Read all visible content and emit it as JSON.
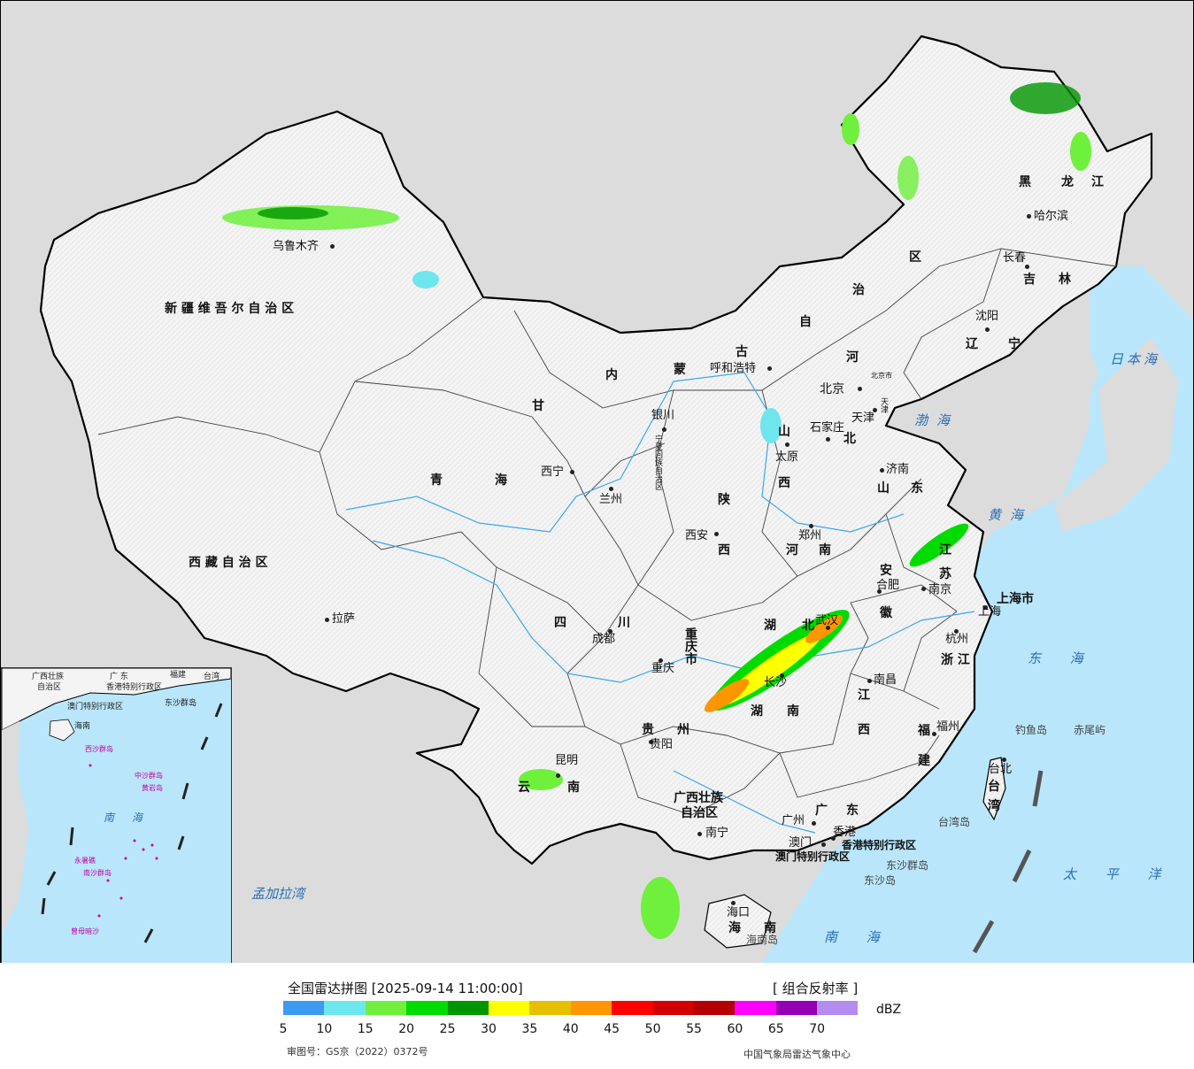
{
  "legend": {
    "title": "全国雷达拼图 [2025-09-14 11:00:00]",
    "product": "[ 组合反射率 ]",
    "unit": "dBZ",
    "approval": "审图号：GS京（2022）0372号",
    "producer": "中国气象局雷达气象中心",
    "colors": [
      "#3c9bf0",
      "#6ee6ee",
      "#6ef03c",
      "#00dc00",
      "#009600",
      "#ffff00",
      "#e6c000",
      "#ff9600",
      "#ff0000",
      "#d20000",
      "#b40000",
      "#ff00ff",
      "#9600b4",
      "#b48cf0"
    ],
    "ticks": [
      "5",
      "10",
      "15",
      "20",
      "25",
      "30",
      "35",
      "40",
      "45",
      "50",
      "55",
      "60",
      "65",
      "70"
    ]
  },
  "map": {
    "provinces": {
      "xinjiang": "新 疆 维 吾 尔 自 治 区",
      "xizang": "西 藏 自 治 区",
      "qinghai_a": "青",
      "qinghai_b": "海",
      "gansu": "甘",
      "neimenggu_a": "内",
      "neimenggu_b": "蒙",
      "neimenggu_c": "古",
      "neimenggu_d": "自",
      "neimenggu_e": "治",
      "neimenggu_f": "区",
      "heilongjiang_a": "黑",
      "heilongjiang_b": "龙",
      "heilongjiang_c": "江",
      "jilin_a": "吉",
      "jilin_b": "林",
      "liaoning_a": "辽",
      "liaoning_b": "宁",
      "hebei_a": "河",
      "hebei_b": "北",
      "shanxi_a": "山",
      "shanxi_b": "西",
      "shandong_a": "山",
      "shandong_b": "东",
      "shaanxi_a": "陕",
      "shaanxi_b": "西",
      "henan_a": "河",
      "henan_b": "南",
      "jiangsu_a": "江",
      "jiangsu_b": "苏",
      "anhui_a": "安",
      "anhui_b": "徽",
      "shanghai": "上海市",
      "zhejiang": "浙 江",
      "hubei_a": "湖",
      "hubei_b": "北",
      "hunan_a": "湖",
      "hunan_b": "南",
      "jiangxi_a": "江",
      "jiangxi_b": "西",
      "fujian_a": "福",
      "fujian_b": "建",
      "sichuan_a": "四",
      "sichuan_b": "川",
      "chongqing": "重庆市",
      "guizhou_a": "贵",
      "guizhou_b": "州",
      "yunnan_a": "云",
      "yunnan_b": "南",
      "guangxi_a": "广西壮族",
      "guangxi_b": "自治区",
      "guangdong_a": "广",
      "guangdong_b": "东",
      "hainan_a": "海",
      "hainan_b": "南",
      "taiwan_a": "台",
      "taiwan_b": "湾",
      "ningxia": "宁夏回族自治区",
      "xianggang": "香港特别行政区",
      "aomen": "澳门特别行政区",
      "beijing": "北京市",
      "tianjin": "天津"
    },
    "cities": {
      "urumqi": "乌鲁木齐",
      "lhasa": "拉萨",
      "xining": "西宁",
      "lanzhou": "兰州",
      "yinchuan": "银川",
      "hohhot": "呼和浩特",
      "beijing": "北京",
      "tianjin": "天津",
      "shijiazhuang": "石家庄",
      "taiyuan": "太原",
      "jinan": "济南",
      "zhengzhou": "郑州",
      "xian": "西安",
      "hefei": "合肥",
      "nanjing": "南京",
      "shanghai": "上海",
      "hangzhou": "杭州",
      "wuhan": "武汉",
      "changsha": "长沙",
      "nanchang": "南昌",
      "fuzhou": "福州",
      "taibei": "台北",
      "chengdu": "成都",
      "chongqing": "重庆",
      "guiyang": "贵阳",
      "kunming": "昆明",
      "nanning": "南宁",
      "guangzhou": "广州",
      "aomen": "澳门",
      "xianggang": "香港",
      "haikou": "海口",
      "harbin": "哈尔滨",
      "changchun": "长春",
      "shenyang": "沈阳"
    },
    "seas": {
      "japan_sea": "日本海",
      "bohai": "渤海",
      "yellow_sea": "黄海",
      "east_sea": "东 海",
      "south_sea": "南 海",
      "pacific": "太 平 洋",
      "bengal": "孟加拉湾"
    },
    "islands": {
      "diaoyu": "钓鱼岛",
      "chiwei": "赤尾屿",
      "taiwan_island": "台湾岛",
      "hainan_island": "海南岛",
      "dongsha_a": "东沙群岛",
      "dongsha_b": "东沙岛"
    }
  },
  "inset": {
    "labels": {
      "guangxi": "广西壮族",
      "zizhiqu": "自治区",
      "guangdong": "广 东",
      "fujian": "福建",
      "taiwan": "台湾",
      "hainan": "海南",
      "hk": "香港特别行政区",
      "macao": "澳门特别行政区",
      "dongsha": "东沙群岛",
      "xisha": "西沙群岛",
      "zhongsha": "中沙群岛",
      "huangyan": "黄岩岛",
      "nansha": "南沙群岛",
      "south_sea": "南 海",
      "yongshu": "永暑礁",
      "zengmu": "曾母暗沙"
    }
  }
}
